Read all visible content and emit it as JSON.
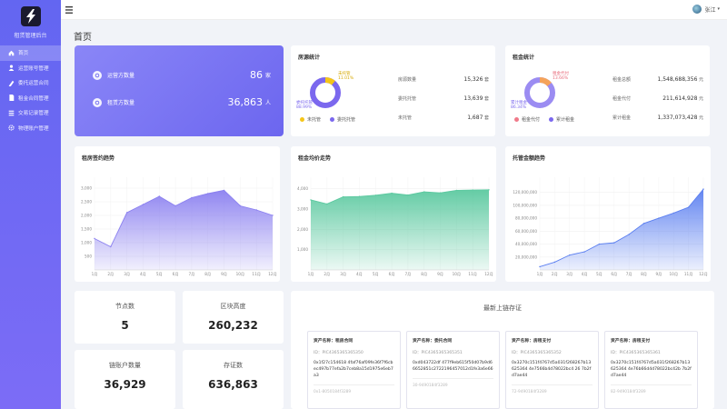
{
  "sidebar": {
    "title": "租赁管理后台",
    "items": [
      {
        "label": "首页",
        "icon": "home-icon",
        "active": true
      },
      {
        "label": "运营账号管理",
        "icon": "user-icon",
        "active": false
      },
      {
        "label": "委托运营合同",
        "icon": "pen-icon",
        "active": false
      },
      {
        "label": "租金合同管理",
        "icon": "document-icon",
        "active": false
      },
      {
        "label": "交易记录管理",
        "icon": "list-icon",
        "active": false
      },
      {
        "label": "物理账户管理",
        "icon": "gear-icon",
        "active": false
      }
    ]
  },
  "topbar": {
    "user": "张江"
  },
  "page": {
    "title": "首页"
  },
  "hero": {
    "rows": [
      {
        "label": "运营方数量",
        "value": "86",
        "unit": "家"
      },
      {
        "label": "租赁方数量",
        "value": "36,863",
        "unit": "人"
      }
    ]
  },
  "stat_deposit": {
    "title": "房源统计",
    "donut_labels": {
      "a_name": "未托管",
      "a_pct": "11.01%",
      "b_name": "委托托管",
      "b_pct": "88.99%"
    },
    "rows": [
      {
        "label": "房源数量",
        "value": "15,326",
        "unit": "套"
      },
      {
        "label": "委托托管",
        "value": "13,639",
        "unit": "套"
      },
      {
        "label": "未托管",
        "value": "1,687",
        "unit": "套"
      }
    ],
    "legend": [
      "未托管",
      "委托托管"
    ],
    "share": 0.1101,
    "colors": {
      "a": "#f5c518",
      "b": "#7b68ee"
    }
  },
  "stat_rent": {
    "title": "租金统计",
    "donut_labels": {
      "a_name": "租金代付",
      "a_pct": "13.66%",
      "b_name": "累计租金",
      "b_pct": "86.34%"
    },
    "rows": [
      {
        "label": "租金总额",
        "value": "1,548,688,356",
        "unit": "元"
      },
      {
        "label": "租金代付",
        "value": "211,614,928",
        "unit": "元"
      },
      {
        "label": "累计租金",
        "value": "1,337,073,428",
        "unit": "元"
      }
    ],
    "legend": [
      "租金代付",
      "累计租金"
    ],
    "share": 0.1366,
    "colors": {
      "a": "#f07a8a",
      "b": "#7b68ee"
    }
  },
  "charts": {
    "signing": {
      "title": "租房签约趋势",
      "color": "#8b80f0",
      "chart_data": {
        "type": "area",
        "x": [
          "1月",
          "2月",
          "3月",
          "4月",
          "5月",
          "6月",
          "7月",
          "8月",
          "9月",
          "10月",
          "11月",
          "12月"
        ],
        "values": [
          1150,
          850,
          2100,
          2400,
          2700,
          2350,
          2650,
          2800,
          2920,
          2350,
          2200,
          2000
        ],
        "yticks": [
          "500",
          "1,000",
          "1,500",
          "2,000",
          "2,500",
          "3,000"
        ],
        "ylim": [
          0,
          3200
        ]
      }
    },
    "price": {
      "title": "租金均价走势",
      "color": "#5cc9a0",
      "chart_data": {
        "type": "area",
        "x": [
          "1月",
          "2月",
          "3月",
          "4月",
          "5月",
          "6月",
          "7月",
          "8月",
          "9月",
          "10月",
          "11月",
          "12月"
        ],
        "values": [
          3450,
          3250,
          3600,
          3620,
          3680,
          3780,
          3690,
          3850,
          3800,
          3920,
          3940,
          3950
        ],
        "yticks": [
          "1,000",
          "2,000",
          "3,000",
          "4,000"
        ],
        "ylim": [
          0,
          4300
        ]
      }
    },
    "hosting": {
      "title": "托管金额趋势",
      "color": "#5b7ff0",
      "chart_data": {
        "type": "area",
        "x": [
          "1月",
          "2月",
          "3月",
          "4月",
          "5月",
          "6月",
          "7月",
          "8月",
          "9月",
          "10月",
          "11月",
          "12月"
        ],
        "values": [
          5000000,
          12000000,
          23000000,
          28000000,
          40000000,
          42000000,
          55000000,
          72000000,
          80000000,
          88000000,
          97000000,
          125000000
        ],
        "yticks": [
          "20,000,000",
          "40,000,000",
          "60,000,000",
          "80,000,000",
          "100,000,000",
          "120,000,000"
        ],
        "ylim": [
          0,
          135000000
        ]
      }
    }
  },
  "counts": [
    {
      "label": "节点数",
      "value": "5"
    },
    {
      "label": "区块高度",
      "value": "260,232"
    },
    {
      "label": "链账户数量",
      "value": "36,929"
    },
    {
      "label": "存证数",
      "value": "636,863"
    }
  ],
  "blocks": {
    "title": "最新上链存证",
    "items": [
      {
        "name": "资产名称：租房合同",
        "id": "ID：PIC4365365365350",
        "hash": "0x1f27c154618 4faf76af09fe36f7f6cbec497b77efa2b7ceb8a15d1975e6eb7a3",
        "foot": "0x1-8050184f3289"
      },
      {
        "name": "资产名称：委托合同",
        "id": "ID：PIC4365365365351",
        "hash": "0xd043722df 477f9eb615f50d07b9d66652851c2722196457012d1fe3a6e66",
        "foot": "30-9490184f3289"
      },
      {
        "name": "资产名称：房租支付",
        "id": "ID：PIC4365365365352",
        "hash": "0x3270c151f4767d5a031f268267b13625364 4e7566b4d78022bc4 26 7b2fd7ae44",
        "foot": "72-9490184f3289"
      },
      {
        "name": "资产名称：房租支付",
        "id": "ID：PIC4365365365361",
        "hash": "0x3270c151f4767d5a031f268267b13625364 4e76b66d4d78022bc42b 7b2fd7ae44",
        "foot": "82-9490184f3289"
      }
    ]
  }
}
